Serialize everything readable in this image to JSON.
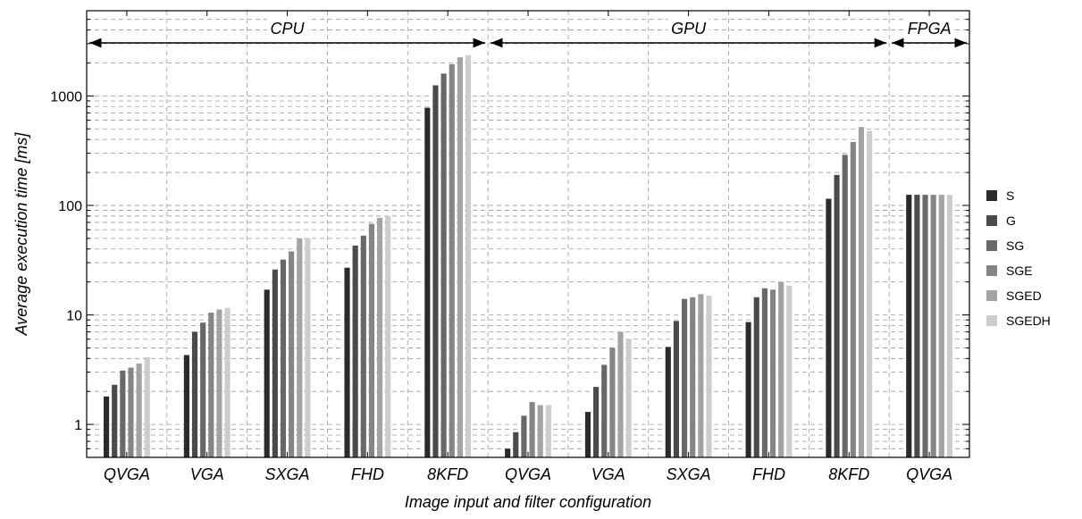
{
  "chart_data": {
    "type": "bar",
    "title": "",
    "xlabel": "Image input and filter configuration",
    "ylabel": "Average execution time [ms]",
    "yscale": "log",
    "ylim": [
      0.5,
      6000
    ],
    "yticks": [
      1,
      10,
      100,
      1000
    ],
    "ytick_labels": [
      "1",
      "10",
      "100",
      "1000"
    ],
    "grid": true,
    "legend_position": "right",
    "regions": [
      {
        "label": "CPU",
        "groups": [
          0,
          1,
          2,
          3,
          4
        ]
      },
      {
        "label": "GPU",
        "groups": [
          5,
          6,
          7,
          8,
          9
        ]
      },
      {
        "label": "FPGA",
        "groups": [
          10
        ]
      }
    ],
    "categories": [
      "QVGA",
      "VGA",
      "SXGA",
      "FHD",
      "8KFD",
      "QVGA",
      "VGA",
      "SXGA",
      "FHD",
      "8KFD",
      "QVGA"
    ],
    "series": [
      {
        "name": "S",
        "color": "#2b2b2b",
        "values": [
          1.8,
          4.3,
          17,
          27,
          780,
          0.6,
          1.3,
          5.1,
          8.6,
          115,
          125
        ]
      },
      {
        "name": "G",
        "color": "#4a4a4a",
        "values": [
          2.3,
          7.0,
          26,
          43,
          1250,
          0.85,
          2.2,
          8.8,
          14.5,
          190,
          125
        ]
      },
      {
        "name": "SG",
        "color": "#686868",
        "values": [
          3.1,
          8.5,
          32,
          53,
          1600,
          1.2,
          3.5,
          14,
          17.5,
          290,
          125
        ]
      },
      {
        "name": "SGE",
        "color": "#858585",
        "values": [
          3.3,
          10.5,
          38,
          68,
          1950,
          1.6,
          5.0,
          14.5,
          17,
          380,
          125
        ]
      },
      {
        "name": "SGED",
        "color": "#a3a3a3",
        "values": [
          3.6,
          11.2,
          50,
          77,
          2250,
          1.5,
          7.0,
          15.5,
          20,
          520,
          125
        ]
      },
      {
        "name": "SGEDH",
        "color": "#cdcdcd",
        "values": [
          4.1,
          11.6,
          50,
          80,
          2350,
          1.5,
          6.0,
          15,
          18.5,
          480,
          125
        ]
      }
    ]
  }
}
